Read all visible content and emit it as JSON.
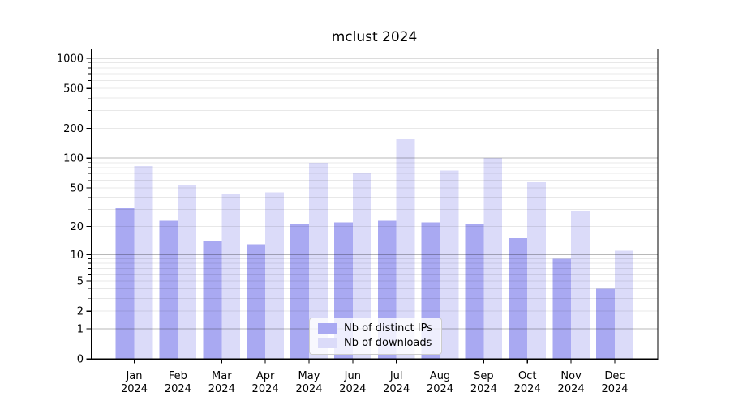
{
  "title": "mclust 2024",
  "chart_data": {
    "type": "bar",
    "title": "mclust 2024",
    "categories": [
      "Jan",
      "Feb",
      "Mar",
      "Apr",
      "May",
      "Jun",
      "Jul",
      "Aug",
      "Sep",
      "Oct",
      "Nov",
      "Dec"
    ],
    "year_label": "2024",
    "series": [
      {
        "name": "Nb of distinct IPs",
        "color": "#a9a9f2",
        "values": [
          31,
          23,
          14,
          13,
          21,
          22,
          23,
          22,
          21,
          15,
          9,
          4
        ]
      },
      {
        "name": "Nb of downloads",
        "color": "#dbdbf9",
        "values": [
          83,
          53,
          43,
          45,
          90,
          70,
          155,
          75,
          100,
          57,
          29,
          11
        ]
      }
    ],
    "yscale": "log1p",
    "yticks": [
      {
        "v": 0,
        "label": "0"
      },
      {
        "v": 1,
        "label": "1"
      },
      {
        "v": 2,
        "label": "2"
      },
      {
        "v": 5,
        "label": "5"
      },
      {
        "v": 10,
        "label": "10"
      },
      {
        "v": 20,
        "label": "20"
      },
      {
        "v": 50,
        "label": "50"
      },
      {
        "v": 100,
        "label": "100"
      },
      {
        "v": 200,
        "label": "200"
      },
      {
        "v": 500,
        "label": "500"
      },
      {
        "v": 1000,
        "label": "1000"
      }
    ],
    "ylim": [
      0,
      1240
    ],
    "xlabel": "",
    "ylabel": "",
    "grid": "horizontal log gridlines, majors at 1/10/100/1000",
    "legend_position": "inside lower-center"
  },
  "legend": {
    "items": [
      {
        "label": "Nb of distinct IPs",
        "color": "#a9a9f2"
      },
      {
        "label": "Nb of downloads",
        "color": "#dbdbf9"
      }
    ]
  },
  "colors": {
    "background": "#ffffff",
    "grid_major": "rgba(0,0,0,0.28)",
    "grid_minor": "rgba(0,0,0,0.09)",
    "spine": "#000000",
    "text": "#000000"
  }
}
